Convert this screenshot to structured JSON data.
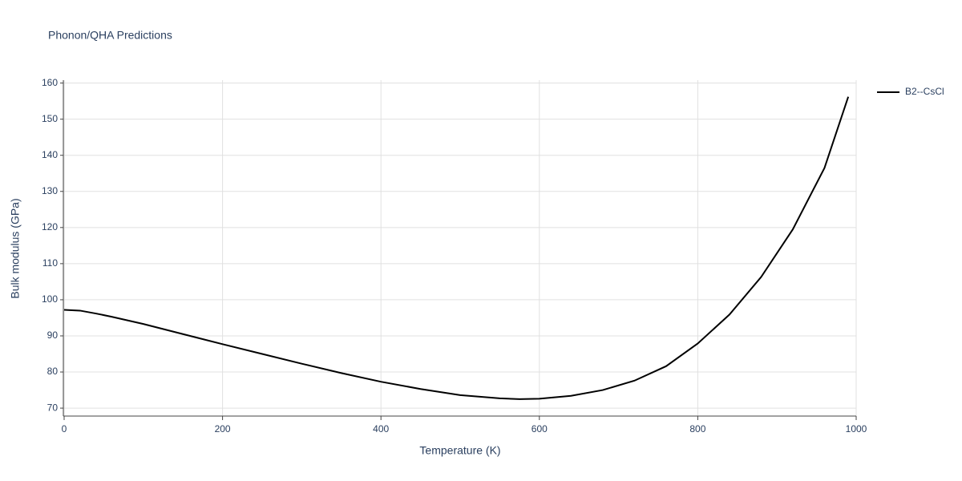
{
  "chart_data": {
    "type": "line",
    "title": "Phonon/QHA Predictions",
    "x_label": "Temperature (K)",
    "y_label": "Bulk modulus (GPa)",
    "x": [
      0,
      20,
      40,
      60,
      100,
      150,
      200,
      250,
      300,
      350,
      400,
      450,
      500,
      550,
      575,
      600,
      640,
      680,
      720,
      760,
      800,
      840,
      880,
      920,
      960,
      990
    ],
    "series": [
      {
        "name": "B2--CsCl",
        "color": "#000000",
        "values": [
          97.2,
          97.0,
          96.2,
          95.3,
          93.3,
          90.5,
          87.7,
          85.0,
          82.3,
          79.7,
          77.3,
          75.3,
          73.6,
          72.7,
          72.5,
          72.6,
          73.4,
          75.0,
          77.6,
          81.6,
          87.9,
          95.9,
          106.3,
          119.5,
          136.5,
          156.2
        ]
      }
    ],
    "xlim": [
      0,
      1000
    ],
    "xticks": [
      0,
      200,
      400,
      600,
      800,
      1000
    ],
    "ylim": [
      67.8,
      160.8
    ],
    "yticks": [
      70,
      80,
      90,
      100,
      110,
      120,
      130,
      140,
      150,
      160
    ],
    "grid": true,
    "legend": "top-right"
  }
}
